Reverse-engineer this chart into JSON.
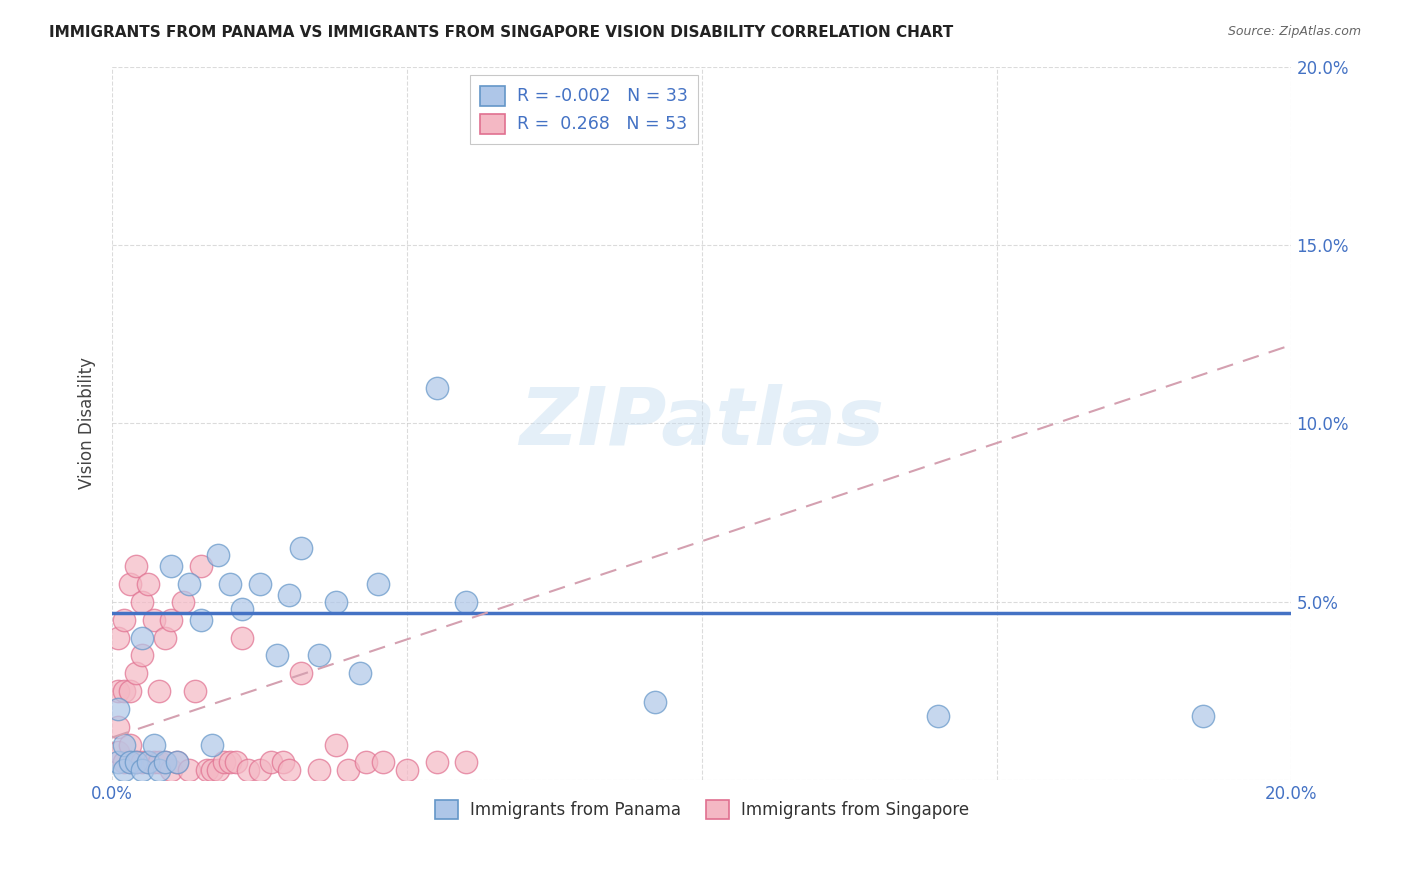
{
  "title": "IMMIGRANTS FROM PANAMA VS IMMIGRANTS FROM SINGAPORE VISION DISABILITY CORRELATION CHART",
  "source": "Source: ZipAtlas.com",
  "ylabel": "Vision Disability",
  "xlim": [
    0,
    0.2
  ],
  "ylim": [
    0,
    0.2
  ],
  "xtick_positions": [
    0.0,
    0.05,
    0.1,
    0.15,
    0.2
  ],
  "xtick_labels_bottom": [
    "0.0%",
    "",
    "",
    "",
    "20.0%"
  ],
  "ytick_positions": [
    0.0,
    0.05,
    0.1,
    0.15,
    0.2
  ],
  "ytick_labels_right": [
    "",
    "5.0%",
    "10.0%",
    "15.0%",
    "20.0%"
  ],
  "panama_color": "#aec6e8",
  "singapore_color": "#f4b8c4",
  "panama_edge": "#6496c8",
  "singapore_edge": "#e07090",
  "legend_panama_label": "Immigrants from Panama",
  "legend_singapore_label": "Immigrants from Singapore",
  "panama_R": "-0.002",
  "panama_N": "33",
  "singapore_R": "0.268",
  "singapore_N": "53",
  "watermark": "ZIPatlas",
  "panama_x": [
    0.001,
    0.001,
    0.002,
    0.002,
    0.003,
    0.004,
    0.005,
    0.005,
    0.006,
    0.007,
    0.008,
    0.009,
    0.01,
    0.011,
    0.013,
    0.015,
    0.017,
    0.018,
    0.02,
    0.022,
    0.025,
    0.028,
    0.03,
    0.032,
    0.035,
    0.038,
    0.042,
    0.045,
    0.055,
    0.06,
    0.092,
    0.14,
    0.185
  ],
  "panama_y": [
    0.005,
    0.02,
    0.003,
    0.01,
    0.005,
    0.005,
    0.003,
    0.04,
    0.005,
    0.01,
    0.003,
    0.005,
    0.06,
    0.005,
    0.055,
    0.045,
    0.01,
    0.063,
    0.055,
    0.048,
    0.055,
    0.035,
    0.052,
    0.065,
    0.035,
    0.05,
    0.03,
    0.055,
    0.11,
    0.05,
    0.022,
    0.018,
    0.018
  ],
  "singapore_x": [
    0.001,
    0.001,
    0.001,
    0.001,
    0.002,
    0.002,
    0.002,
    0.003,
    0.003,
    0.003,
    0.003,
    0.004,
    0.004,
    0.004,
    0.005,
    0.005,
    0.005,
    0.006,
    0.006,
    0.007,
    0.007,
    0.008,
    0.008,
    0.009,
    0.009,
    0.01,
    0.01,
    0.011,
    0.012,
    0.013,
    0.014,
    0.015,
    0.016,
    0.017,
    0.018,
    0.019,
    0.02,
    0.021,
    0.022,
    0.023,
    0.025,
    0.027,
    0.029,
    0.03,
    0.032,
    0.035,
    0.038,
    0.04,
    0.043,
    0.046,
    0.05,
    0.055,
    0.06
  ],
  "singapore_y": [
    0.008,
    0.015,
    0.025,
    0.04,
    0.005,
    0.025,
    0.045,
    0.005,
    0.01,
    0.025,
    0.055,
    0.005,
    0.03,
    0.06,
    0.005,
    0.035,
    0.05,
    0.005,
    0.055,
    0.005,
    0.045,
    0.005,
    0.025,
    0.005,
    0.04,
    0.003,
    0.045,
    0.005,
    0.05,
    0.003,
    0.025,
    0.06,
    0.003,
    0.003,
    0.003,
    0.005,
    0.005,
    0.005,
    0.04,
    0.003,
    0.003,
    0.005,
    0.005,
    0.003,
    0.03,
    0.003,
    0.01,
    0.003,
    0.005,
    0.005,
    0.003,
    0.005,
    0.005
  ],
  "trendline_blue_color": "#4472c4",
  "trendline_pink_color": "#d4a0b0",
  "panama_trend_y_start": 0.047,
  "panama_trend_y_end": 0.047,
  "singapore_trend_y_start": 0.012,
  "singapore_trend_y_end": 0.122,
  "background_color": "#ffffff",
  "grid_color": "#cccccc",
  "tick_label_color": "#4472c4"
}
